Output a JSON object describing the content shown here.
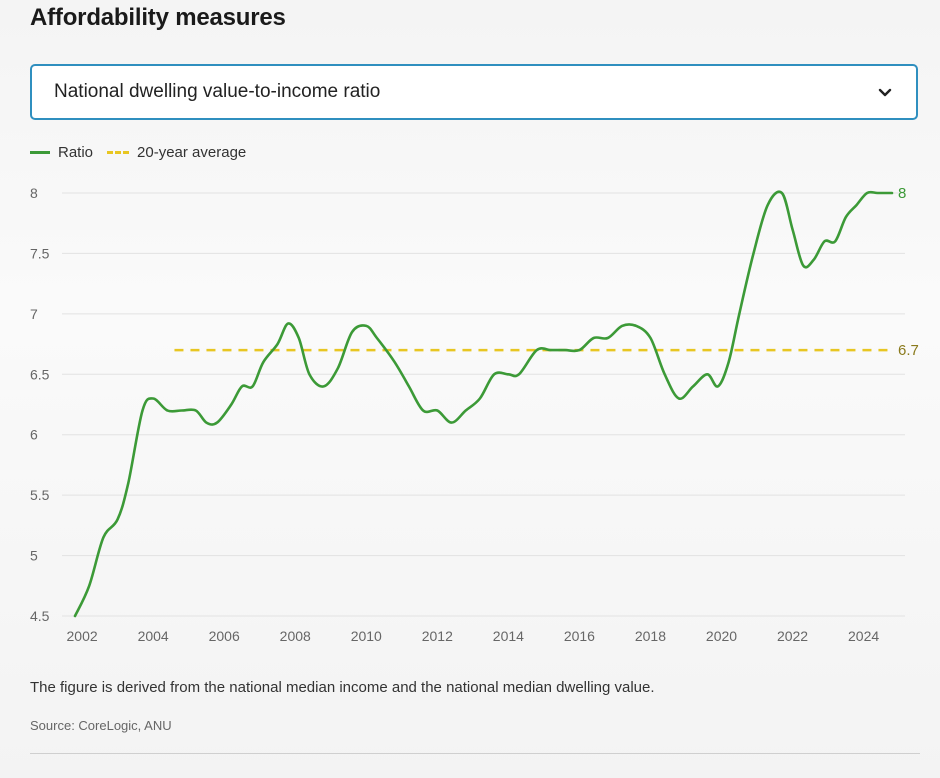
{
  "header": {
    "title": "Affordability measures"
  },
  "selector": {
    "value": "National dwelling value-to-income ratio",
    "icon": "chevron-down-icon"
  },
  "legend": {
    "ratio_label": "Ratio",
    "average_label": "20-year average"
  },
  "colors": {
    "ratio": "#3c9a37",
    "average": "#e8c622",
    "accent": "#2f8fbf"
  },
  "chart_data": {
    "type": "line",
    "ylim": [
      4.5,
      8
    ],
    "yticks": [
      "4.5",
      "5",
      "5.5",
      "6",
      "6.5",
      "7",
      "7.5",
      "8"
    ],
    "xticks": [
      "2002",
      "2004",
      "2006",
      "2008",
      "2010",
      "2012",
      "2014",
      "2016",
      "2018",
      "2020",
      "2022",
      "2024"
    ],
    "series": [
      {
        "name": "Ratio",
        "x": [
          2001.8,
          2002.2,
          2002.6,
          2003.0,
          2003.3,
          2003.7,
          2004.0,
          2004.4,
          2004.8,
          2005.2,
          2005.5,
          2005.8,
          2006.2,
          2006.5,
          2006.8,
          2007.1,
          2007.5,
          2007.8,
          2008.1,
          2008.4,
          2008.8,
          2009.2,
          2009.6,
          2010.0,
          2010.3,
          2010.8,
          2011.2,
          2011.6,
          2012.0,
          2012.4,
          2012.8,
          2013.2,
          2013.6,
          2014.0,
          2014.3,
          2014.8,
          2015.2,
          2015.6,
          2016.0,
          2016.4,
          2016.8,
          2017.2,
          2017.6,
          2018.0,
          2018.4,
          2018.8,
          2019.2,
          2019.6,
          2019.9,
          2020.2,
          2020.5,
          2020.9,
          2021.3,
          2021.7,
          2022.0,
          2022.3,
          2022.6,
          2022.9,
          2023.2,
          2023.5,
          2023.8,
          2024.1,
          2024.4,
          2024.8
        ],
        "values": [
          4.5,
          4.75,
          5.15,
          5.3,
          5.6,
          6.2,
          6.3,
          6.2,
          6.2,
          6.2,
          6.1,
          6.1,
          6.25,
          6.4,
          6.4,
          6.6,
          6.75,
          6.92,
          6.8,
          6.5,
          6.4,
          6.55,
          6.85,
          6.9,
          6.8,
          6.6,
          6.4,
          6.2,
          6.2,
          6.1,
          6.2,
          6.3,
          6.5,
          6.5,
          6.5,
          6.7,
          6.7,
          6.7,
          6.7,
          6.8,
          6.8,
          6.9,
          6.9,
          6.8,
          6.5,
          6.3,
          6.4,
          6.5,
          6.4,
          6.6,
          7.0,
          7.5,
          7.9,
          8.0,
          7.7,
          7.4,
          7.45,
          7.6,
          7.6,
          7.8,
          7.9,
          8.0,
          8.0,
          8.0
        ]
      },
      {
        "name": "20-year average",
        "x": [
          2004.6,
          2024.8
        ],
        "values": [
          6.7,
          6.7
        ]
      }
    ],
    "end_labels": {
      "ratio": "8",
      "average": "6.7"
    },
    "grid": true
  },
  "footer": {
    "note": "The figure is derived from the national median income and the national median dwelling value.",
    "source": "Source: CoreLogic, ANU"
  }
}
